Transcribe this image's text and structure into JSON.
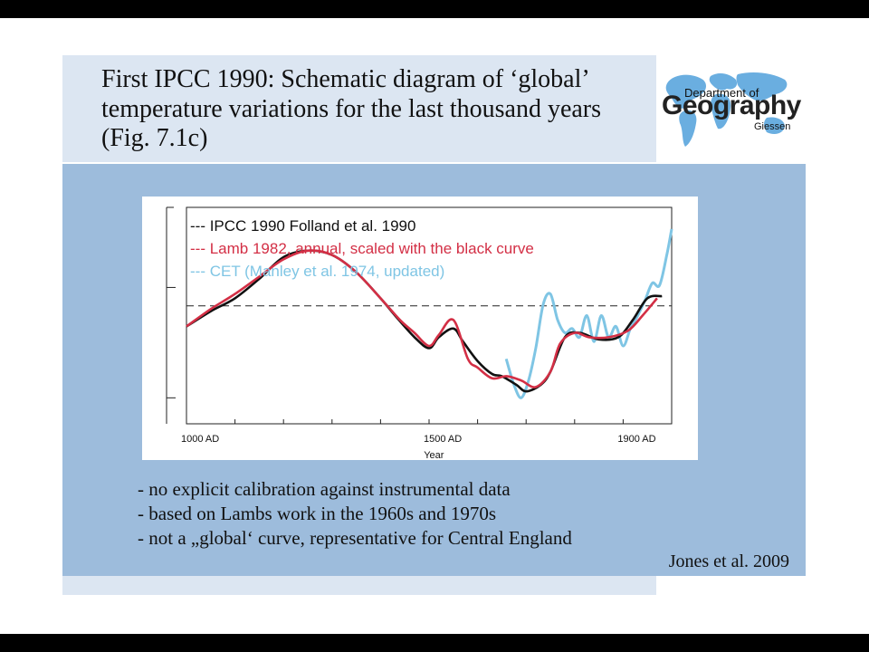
{
  "slide": {
    "title": "First IPCC 1990: Schematic diagram of ‘global’ temperature variations for the last thousand years (Fig. 7.1c)",
    "logo": {
      "line1": "Department of",
      "line2": "Geography",
      "line3": "Giessen"
    },
    "bullets": [
      "- no explicit calibration against instrumental data",
      "- based on Lambs work in the 1960s and 1970s",
      "- not a „global‘ curve, representative for Central England"
    ],
    "source": "Jones et al. 2009",
    "colors": {
      "title_panel": "#dce6f2",
      "blue_panel": "#9dbcdc",
      "logo_blue": "#6aaee0"
    }
  },
  "chart_data": {
    "type": "line",
    "xlabel": "Year",
    "ylabel": "",
    "xlim": [
      1000,
      2000
    ],
    "ylim": [
      0,
      100
    ],
    "x_ticks": [
      {
        "value": 1000,
        "label": "1000 AD"
      },
      {
        "value": 1500,
        "label": "1500 AD"
      },
      {
        "value": 1900,
        "label": "1900 AD"
      }
    ],
    "y_tick_values": [
      12,
      63
    ],
    "reference_line": {
      "y": 54.5,
      "style": "dashed"
    },
    "legend_placement": "top-left",
    "series": [
      {
        "name": "--- IPCC 1990 Folland et al. 1990",
        "color": "#111111",
        "x": [
          1000,
          1050,
          1100,
          1150,
          1200,
          1250,
          1300,
          1350,
          1400,
          1430,
          1470,
          1500,
          1520,
          1550,
          1570,
          1600,
          1630,
          1650,
          1680,
          1700,
          1730,
          1750,
          1780,
          1810,
          1850,
          1890,
          1920,
          1950,
          1980
        ],
        "values": [
          45,
          52,
          58,
          67,
          77,
          80,
          78,
          70,
          58,
          50,
          40,
          35,
          40,
          44,
          38,
          29,
          23,
          22,
          18,
          15,
          18,
          24,
          40,
          42,
          39,
          40,
          48,
          58,
          59
        ]
      },
      {
        "name": "--- Lamb 1982, annual, scaled with the black curve",
        "color": "#d32f45",
        "x": [
          1000,
          1050,
          1100,
          1150,
          1200,
          1250,
          1300,
          1350,
          1400,
          1440,
          1470,
          1500,
          1520,
          1550,
          1580,
          1600,
          1630,
          1660,
          1690,
          1720,
          1750,
          1770,
          1800,
          1830,
          1870,
          1910,
          1940,
          1970
        ],
        "values": [
          45,
          53,
          60,
          68,
          76,
          80,
          78,
          70,
          58,
          48,
          42,
          36,
          41,
          48,
          30,
          26,
          21,
          22,
          20,
          17,
          24,
          37,
          42,
          40,
          40,
          43,
          50,
          58
        ]
      },
      {
        "name": "--- CET (Manley et al. 1974, updated)",
        "color": "#7fc5e4",
        "x": [
          1659,
          1675,
          1690,
          1705,
          1720,
          1735,
          1750,
          1765,
          1780,
          1795,
          1810,
          1825,
          1840,
          1855,
          1870,
          1885,
          1900,
          1915,
          1930,
          1945,
          1960,
          1975,
          1990,
          2000
        ],
        "values": [
          30,
          18,
          12,
          20,
          35,
          55,
          60,
          48,
          42,
          44,
          40,
          50,
          38,
          50,
          40,
          45,
          36,
          44,
          50,
          57,
          65,
          64,
          78,
          90
        ]
      }
    ]
  }
}
